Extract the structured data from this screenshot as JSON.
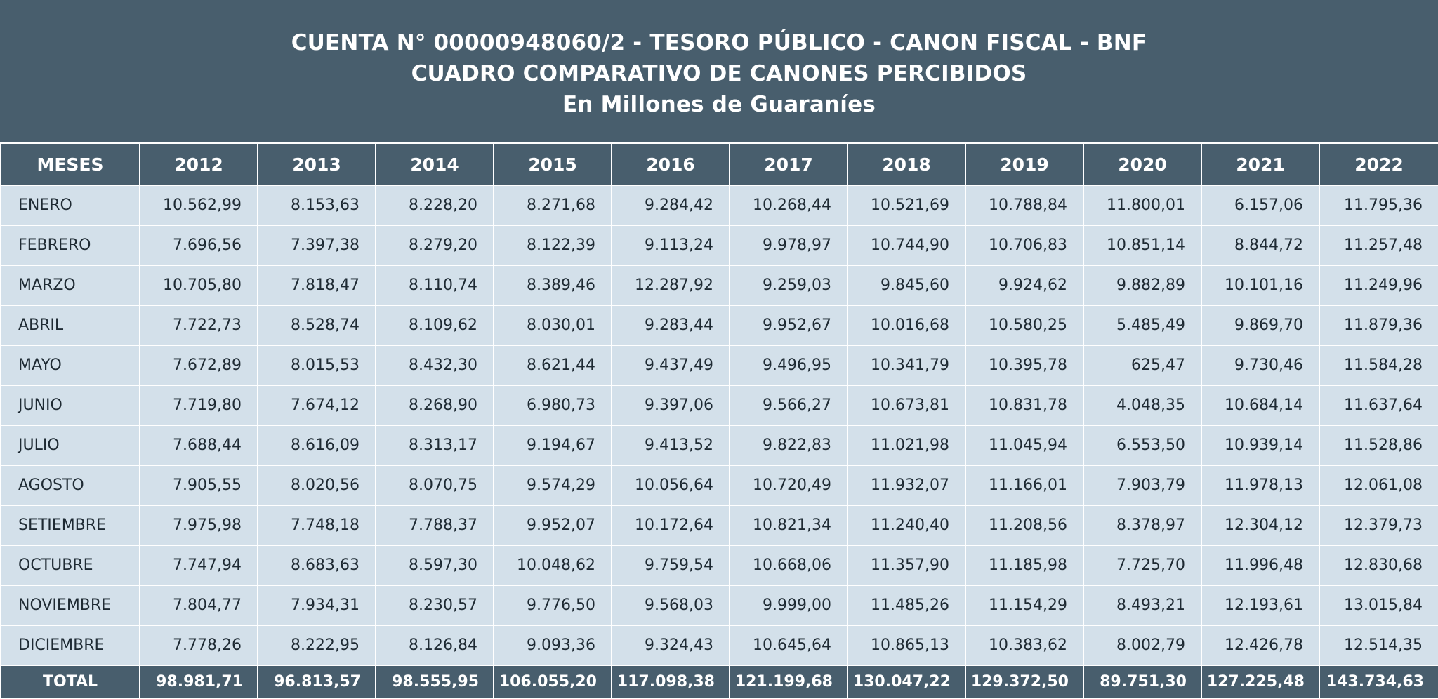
{
  "title": {
    "line1": "CUENTA N° 00000948060/2 - TESORO PÚBLICO - CANON FISCAL - BNF",
    "line2": "CUADRO COMPARATIVO DE CANONES PERCIBIDOS",
    "line3": "En Millones de Guaraníes"
  },
  "table": {
    "header": [
      "MESES",
      "2012",
      "2013",
      "2014",
      "2015",
      "2016",
      "2017",
      "2018",
      "2019",
      "2020",
      "2021",
      "2022"
    ],
    "rows": [
      {
        "month": "ENERO",
        "values": [
          "10.562,99",
          "8.153,63",
          "8.228,20",
          "8.271,68",
          "9.284,42",
          "10.268,44",
          "10.521,69",
          "10.788,84",
          "11.800,01",
          "6.157,06",
          "11.795,36"
        ]
      },
      {
        "month": "FEBRERO",
        "values": [
          "7.696,56",
          "7.397,38",
          "8.279,20",
          "8.122,39",
          "9.113,24",
          "9.978,97",
          "10.744,90",
          "10.706,83",
          "10.851,14",
          "8.844,72",
          "11.257,48"
        ]
      },
      {
        "month": "MARZO",
        "values": [
          "10.705,80",
          "7.818,47",
          "8.110,74",
          "8.389,46",
          "12.287,92",
          "9.259,03",
          "9.845,60",
          "9.924,62",
          "9.882,89",
          "10.101,16",
          "11.249,96"
        ]
      },
      {
        "month": "ABRIL",
        "values": [
          "7.722,73",
          "8.528,74",
          "8.109,62",
          "8.030,01",
          "9.283,44",
          "9.952,67",
          "10.016,68",
          "10.580,25",
          "5.485,49",
          "9.869,70",
          "11.879,36"
        ]
      },
      {
        "month": "MAYO",
        "values": [
          "7.672,89",
          "8.015,53",
          "8.432,30",
          "8.621,44",
          "9.437,49",
          "9.496,95",
          "10.341,79",
          "10.395,78",
          "625,47",
          "9.730,46",
          "11.584,28"
        ]
      },
      {
        "month": "JUNIO",
        "values": [
          "7.719,80",
          "7.674,12",
          "8.268,90",
          "6.980,73",
          "9.397,06",
          "9.566,27",
          "10.673,81",
          "10.831,78",
          "4.048,35",
          "10.684,14",
          "11.637,64"
        ]
      },
      {
        "month": "JULIO",
        "values": [
          "7.688,44",
          "8.616,09",
          "8.313,17",
          "9.194,67",
          "9.413,52",
          "9.822,83",
          "11.021,98",
          "11.045,94",
          "6.553,50",
          "10.939,14",
          "11.528,86"
        ]
      },
      {
        "month": "AGOSTO",
        "values": [
          "7.905,55",
          "8.020,56",
          "8.070,75",
          "9.574,29",
          "10.056,64",
          "10.720,49",
          "11.932,07",
          "11.166,01",
          "7.903,79",
          "11.978,13",
          "12.061,08"
        ]
      },
      {
        "month": "SETIEMBRE",
        "values": [
          "7.975,98",
          "7.748,18",
          "7.788,37",
          "9.952,07",
          "10.172,64",
          "10.821,34",
          "11.240,40",
          "11.208,56",
          "8.378,97",
          "12.304,12",
          "12.379,73"
        ]
      },
      {
        "month": "OCTUBRE",
        "values": [
          "7.747,94",
          "8.683,63",
          "8.597,30",
          "10.048,62",
          "9.759,54",
          "10.668,06",
          "11.357,90",
          "11.185,98",
          "7.725,70",
          "11.996,48",
          "12.830,68"
        ]
      },
      {
        "month": "NOVIEMBRE",
        "values": [
          "7.804,77",
          "7.934,31",
          "8.230,57",
          "9.776,50",
          "9.568,03",
          "9.999,00",
          "11.485,26",
          "11.154,29",
          "8.493,21",
          "12.193,61",
          "13.015,84"
        ]
      },
      {
        "month": "DICIEMBRE",
        "values": [
          "7.778,26",
          "8.222,95",
          "8.126,84",
          "9.093,36",
          "9.324,43",
          "10.645,64",
          "10.865,13",
          "10.383,62",
          "8.002,79",
          "12.426,78",
          "12.514,35"
        ]
      }
    ],
    "total": {
      "label": "TOTAL",
      "values": [
        "98.981,71",
        "96.813,57",
        "98.555,95",
        "106.055,20",
        "117.098,38",
        "121.199,68",
        "130.047,22",
        "129.372,50",
        "89.751,30",
        "127.225,48",
        "143.734,63"
      ]
    }
  },
  "colors": {
    "header_bg": "#485e6d",
    "row_bg": "#d3e0ea",
    "text_light": "#ffffff",
    "text_dark": "#1e2a33"
  }
}
